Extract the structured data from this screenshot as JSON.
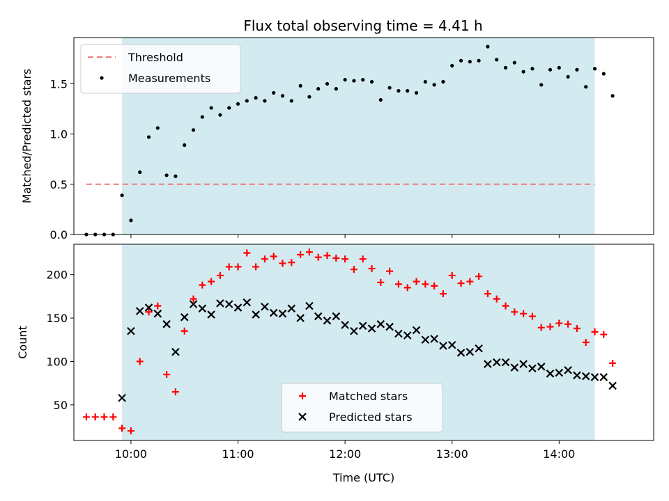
{
  "title": "Flux total observing time = 4.41 h",
  "chart_data": [
    {
      "type": "scatter",
      "ylabel": "Matched/Predicted stars",
      "xlabel": "",
      "xlim": [
        "09:28",
        "14:53"
      ],
      "ylim": [
        0,
        1.96
      ],
      "yticks": [
        0.0,
        0.5,
        1.0,
        1.5
      ],
      "ytick_labels": [
        "0.0",
        "0.5",
        "1.0",
        "1.5"
      ],
      "shaded_region": {
        "from": "09:55",
        "to": "14:20",
        "color": "#d3eaf0"
      },
      "threshold": {
        "label": "Threshold",
        "value": 0.5,
        "from": "09:35",
        "to": "14:20",
        "color": "#f07a7a"
      },
      "legend_position": "upper-left",
      "series": [
        {
          "name": "Measurements",
          "color": "#000000",
          "marker": "dot",
          "points": [
            [
              "09:35",
              0.0
            ],
            [
              "09:40",
              0.0
            ],
            [
              "09:45",
              0.0
            ],
            [
              "09:50",
              0.0
            ],
            [
              "09:55",
              0.39
            ],
            [
              "10:00",
              0.14
            ],
            [
              "10:05",
              0.62
            ],
            [
              "10:10",
              0.97
            ],
            [
              "10:15",
              1.06
            ],
            [
              "10:20",
              0.59
            ],
            [
              "10:25",
              0.58
            ],
            [
              "10:30",
              0.89
            ],
            [
              "10:35",
              1.04
            ],
            [
              "10:40",
              1.17
            ],
            [
              "10:45",
              1.26
            ],
            [
              "10:50",
              1.19
            ],
            [
              "10:55",
              1.26
            ],
            [
              "11:00",
              1.3
            ],
            [
              "11:05",
              1.33
            ],
            [
              "11:10",
              1.36
            ],
            [
              "11:15",
              1.33
            ],
            [
              "11:20",
              1.41
            ],
            [
              "11:25",
              1.38
            ],
            [
              "11:30",
              1.33
            ],
            [
              "11:35",
              1.48
            ],
            [
              "11:40",
              1.37
            ],
            [
              "11:45",
              1.45
            ],
            [
              "11:50",
              1.5
            ],
            [
              "11:55",
              1.45
            ],
            [
              "12:00",
              1.54
            ],
            [
              "12:05",
              1.53
            ],
            [
              "12:10",
              1.54
            ],
            [
              "12:15",
              1.52
            ],
            [
              "12:20",
              1.34
            ],
            [
              "12:25",
              1.46
            ],
            [
              "12:30",
              1.43
            ],
            [
              "12:35",
              1.43
            ],
            [
              "12:40",
              1.41
            ],
            [
              "12:45",
              1.52
            ],
            [
              "12:50",
              1.49
            ],
            [
              "12:55",
              1.52
            ],
            [
              "13:00",
              1.68
            ],
            [
              "13:05",
              1.73
            ],
            [
              "13:10",
              1.72
            ],
            [
              "13:15",
              1.73
            ],
            [
              "13:20",
              1.87
            ],
            [
              "13:25",
              1.74
            ],
            [
              "13:30",
              1.66
            ],
            [
              "13:35",
              1.71
            ],
            [
              "13:40",
              1.62
            ],
            [
              "13:45",
              1.65
            ],
            [
              "13:50",
              1.49
            ],
            [
              "13:55",
              1.64
            ],
            [
              "14:00",
              1.66
            ],
            [
              "14:05",
              1.57
            ],
            [
              "14:10",
              1.64
            ],
            [
              "14:15",
              1.47
            ],
            [
              "14:20",
              1.65
            ],
            [
              "14:25",
              1.6
            ],
            [
              "14:30",
              1.38
            ]
          ]
        }
      ]
    },
    {
      "type": "scatter",
      "ylabel": "Count",
      "xlabel": "Time (UTC)",
      "xlim": [
        "09:28",
        "14:53"
      ],
      "ylim": [
        9,
        235
      ],
      "yticks": [
        50,
        100,
        150,
        200
      ],
      "ytick_labels": [
        "50",
        "100",
        "150",
        "200"
      ],
      "xticks": [
        "10:00",
        "11:00",
        "12:00",
        "13:00",
        "14:00"
      ],
      "xtick_labels": [
        "10:00",
        "11:00",
        "12:00",
        "13:00",
        "14:00"
      ],
      "shaded_region": {
        "from": "09:55",
        "to": "14:20",
        "color": "#d3eaf0"
      },
      "legend_position": "lower-center",
      "series": [
        {
          "name": "Matched stars",
          "color": "#ff0000",
          "marker": "plus",
          "points": [
            [
              "09:35",
              36
            ],
            [
              "09:40",
              36
            ],
            [
              "09:45",
              36
            ],
            [
              "09:50",
              36
            ],
            [
              "09:55",
              23
            ],
            [
              "10:00",
              20
            ],
            [
              "10:05",
              100
            ],
            [
              "10:10",
              157
            ],
            [
              "10:15",
              164
            ],
            [
              "10:20",
              85
            ],
            [
              "10:25",
              65
            ],
            [
              "10:30",
              135
            ],
            [
              "10:35",
              172
            ],
            [
              "10:40",
              188
            ],
            [
              "10:45",
              192
            ],
            [
              "10:50",
              199
            ],
            [
              "10:55",
              209
            ],
            [
              "11:00",
              209
            ],
            [
              "11:05",
              225
            ],
            [
              "11:10",
              209
            ],
            [
              "11:15",
              218
            ],
            [
              "11:20",
              221
            ],
            [
              "11:25",
              213
            ],
            [
              "11:30",
              214
            ],
            [
              "11:35",
              223
            ],
            [
              "11:40",
              226
            ],
            [
              "11:45",
              220
            ],
            [
              "11:50",
              222
            ],
            [
              "11:55",
              219
            ],
            [
              "12:00",
              218
            ],
            [
              "12:05",
              206
            ],
            [
              "12:10",
              218
            ],
            [
              "12:15",
              207
            ],
            [
              "12:20",
              191
            ],
            [
              "12:25",
              204
            ],
            [
              "12:30",
              189
            ],
            [
              "12:35",
              185
            ],
            [
              "12:40",
              192
            ],
            [
              "12:45",
              189
            ],
            [
              "12:50",
              187
            ],
            [
              "12:55",
              178
            ],
            [
              "13:00",
              199
            ],
            [
              "13:05",
              190
            ],
            [
              "13:10",
              192
            ],
            [
              "13:15",
              198
            ],
            [
              "13:20",
              178
            ],
            [
              "13:25",
              172
            ],
            [
              "13:30",
              164
            ],
            [
              "13:35",
              157
            ],
            [
              "13:40",
              155
            ],
            [
              "13:45",
              152
            ],
            [
              "13:50",
              139
            ],
            [
              "13:55",
              140
            ],
            [
              "14:00",
              144
            ],
            [
              "14:05",
              143
            ],
            [
              "14:10",
              138
            ],
            [
              "14:15",
              122
            ],
            [
              "14:20",
              134
            ],
            [
              "14:25",
              131
            ],
            [
              "14:30",
              98
            ]
          ]
        },
        {
          "name": "Predicted stars",
          "color": "#000000",
          "marker": "x",
          "points": [
            [
              "09:55",
              58
            ],
            [
              "10:00",
              135
            ],
            [
              "10:05",
              158
            ],
            [
              "10:10",
              162
            ],
            [
              "10:15",
              155
            ],
            [
              "10:20",
              143
            ],
            [
              "10:25",
              111
            ],
            [
              "10:30",
              151
            ],
            [
              "10:35",
              166
            ],
            [
              "10:40",
              161
            ],
            [
              "10:45",
              154
            ],
            [
              "10:50",
              167
            ],
            [
              "10:55",
              166
            ],
            [
              "11:00",
              162
            ],
            [
              "11:05",
              168
            ],
            [
              "11:10",
              154
            ],
            [
              "11:15",
              163
            ],
            [
              "11:20",
              156
            ],
            [
              "11:25",
              155
            ],
            [
              "11:30",
              161
            ],
            [
              "11:35",
              150
            ],
            [
              "11:40",
              164
            ],
            [
              "11:45",
              152
            ],
            [
              "11:50",
              147
            ],
            [
              "11:55",
              152
            ],
            [
              "12:00",
              142
            ],
            [
              "12:05",
              135
            ],
            [
              "12:10",
              141
            ],
            [
              "12:15",
              138
            ],
            [
              "12:20",
              143
            ],
            [
              "12:25",
              140
            ],
            [
              "12:30",
              132
            ],
            [
              "12:35",
              130
            ],
            [
              "12:40",
              136
            ],
            [
              "12:45",
              125
            ],
            [
              "12:50",
              126
            ],
            [
              "12:55",
              118
            ],
            [
              "13:00",
              119
            ],
            [
              "13:05",
              110
            ],
            [
              "13:10",
              111
            ],
            [
              "13:15",
              115
            ],
            [
              "13:20",
              97
            ],
            [
              "13:25",
              99
            ],
            [
              "13:30",
              99
            ],
            [
              "13:35",
              93
            ],
            [
              "13:40",
              97
            ],
            [
              "13:45",
              92
            ],
            [
              "13:50",
              94
            ],
            [
              "13:55",
              86
            ],
            [
              "14:00",
              87
            ],
            [
              "14:05",
              90
            ],
            [
              "14:10",
              84
            ],
            [
              "14:15",
              83
            ],
            [
              "14:20",
              82
            ],
            [
              "14:25",
              82
            ],
            [
              "14:30",
              72
            ]
          ]
        }
      ]
    }
  ]
}
